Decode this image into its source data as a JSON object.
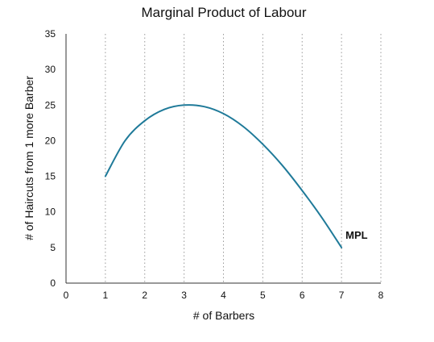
{
  "chart_data": {
    "type": "line",
    "title": "Marginal Product of Labour",
    "xlabel": "# of Barbers",
    "ylabel": "# of Haircuts from 1 more Barber",
    "xlim": [
      0,
      8
    ],
    "ylim": [
      0,
      35
    ],
    "xticks": [
      0,
      1,
      2,
      3,
      4,
      5,
      6,
      7,
      8
    ],
    "yticks": [
      0,
      5,
      10,
      15,
      20,
      25,
      30,
      35
    ],
    "grid": {
      "x": "dotted",
      "y": "none"
    },
    "legend": "none",
    "series": [
      {
        "name": "MPL",
        "color": "#1f7a99",
        "x": [
          1,
          1.5,
          2,
          2.5,
          3,
          3.5,
          4,
          4.5,
          5,
          5.5,
          6,
          6.5,
          7
        ],
        "y": [
          15,
          20,
          22.8,
          24.4,
          25,
          24.8,
          23.8,
          22,
          19.5,
          16.5,
          13,
          9.2,
          5
        ]
      }
    ]
  }
}
